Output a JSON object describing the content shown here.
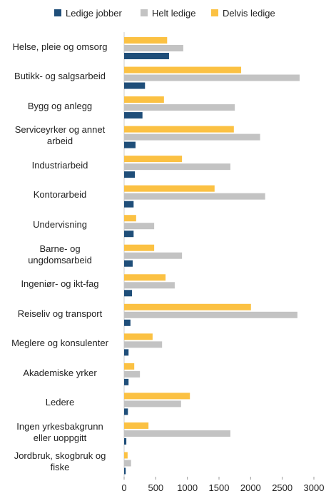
{
  "chart_data": {
    "type": "barh",
    "categories": [
      "Helse, pleie og omsorg",
      "Butikk- og salgsarbeid",
      "Bygg og anlegg",
      "Serviceyrker og annet\narbeid",
      "Industriarbeid",
      "Kontorarbeid",
      "Undervisning",
      "Barne- og\nungdomsarbeid",
      "Ingeniør- og ikt-fag",
      "Reiseliv og transport",
      "Meglere og konsulenter",
      "Akademiske yrker",
      "Ledere",
      "Ingen yrkesbakgrunn\neller uoppgitt",
      "Jordbruk, skogbruk og\nfiske"
    ],
    "series": [
      {
        "name": "Ledige jobber",
        "color": "#1f4e79",
        "values": [
          710,
          330,
          290,
          180,
          170,
          150,
          150,
          135,
          125,
          100,
          70,
          70,
          60,
          35,
          25
        ]
      },
      {
        "name": "Helt ledige",
        "color": "#c3c3c3",
        "values": [
          935,
          2775,
          1750,
          2150,
          1680,
          2230,
          475,
          915,
          800,
          2740,
          600,
          250,
          900,
          1680,
          110
        ]
      },
      {
        "name": "Delvis ledige",
        "color": "#fbc143",
        "values": [
          680,
          1850,
          630,
          1735,
          915,
          1430,
          190,
          475,
          655,
          2005,
          450,
          160,
          1040,
          385,
          55
        ]
      }
    ],
    "xlim": [
      0,
      3000
    ],
    "xticks": [
      0,
      500,
      1000,
      1500,
      2000,
      2500,
      3000
    ],
    "legend": "top"
  }
}
